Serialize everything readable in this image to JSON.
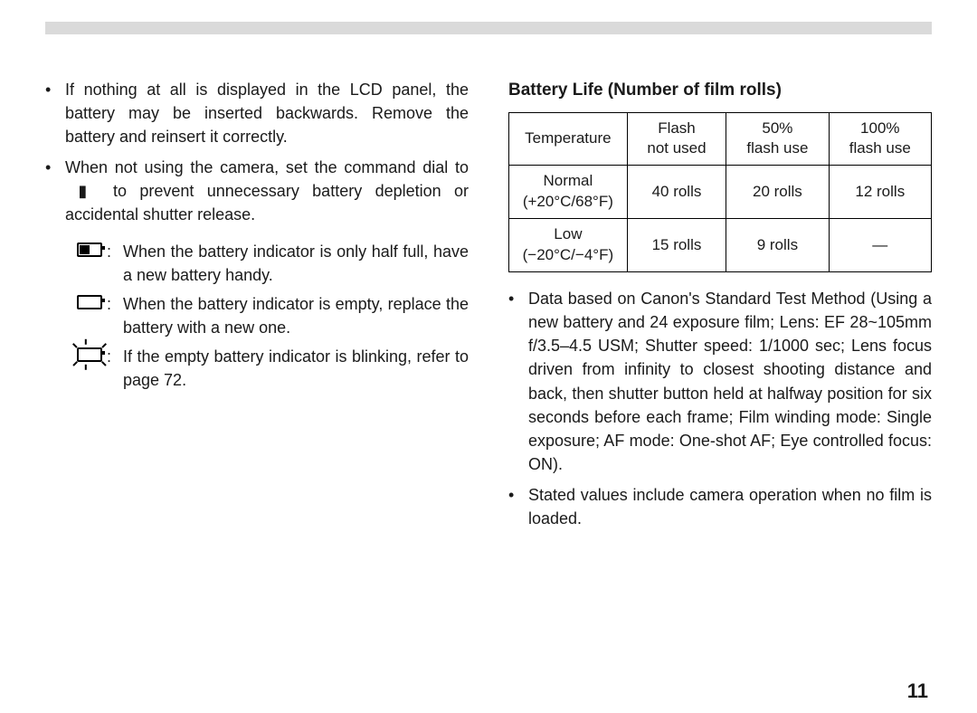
{
  "left": {
    "bullets": [
      "If nothing at all is displayed in the LCD panel, the battery may be inserted backwards. Remove the battery and reinsert it correctly.",
      "When not using the camera, set the command dial to  ▮  to prevent unnecessary battery depletion or accidental shutter release."
    ],
    "icon_items": [
      "When the battery indicator is only half full, have a new battery handy.",
      "When the battery indicator is empty, replace the battery with a new one.",
      "If the empty battery indicator is blinking, refer to page 72."
    ],
    "sep": ":"
  },
  "right": {
    "heading": "Battery Life (Number of film rolls)",
    "table": {
      "headers": [
        "Temperature",
        "Flash\nnot used",
        "50%\nflash use",
        "100%\nflash use"
      ],
      "rows": [
        [
          "Normal\n(+20°C/68°F)",
          "40 rolls",
          "20 rolls",
          "12 rolls"
        ],
        [
          "Low\n(−20°C/−4°F)",
          "15 rolls",
          "9 rolls",
          "—"
        ]
      ],
      "border_color": "#000000",
      "background": "#ffffff"
    },
    "bullets": [
      "Data based on Canon's Standard Test Method (Using a new battery and 24 exposure film; Lens: EF 28~105mm f/3.5–4.5 USM; Shutter speed: 1/1000 sec; Lens focus driven from infinity to closest shooting distance and back, then shutter button held at halfway position for six seconds before each frame; Film winding mode: Single exposure; AF mode: One-shot AF; Eye controlled focus: ON).",
      "Stated values include camera operation when no film is loaded."
    ]
  },
  "page_number": "11"
}
